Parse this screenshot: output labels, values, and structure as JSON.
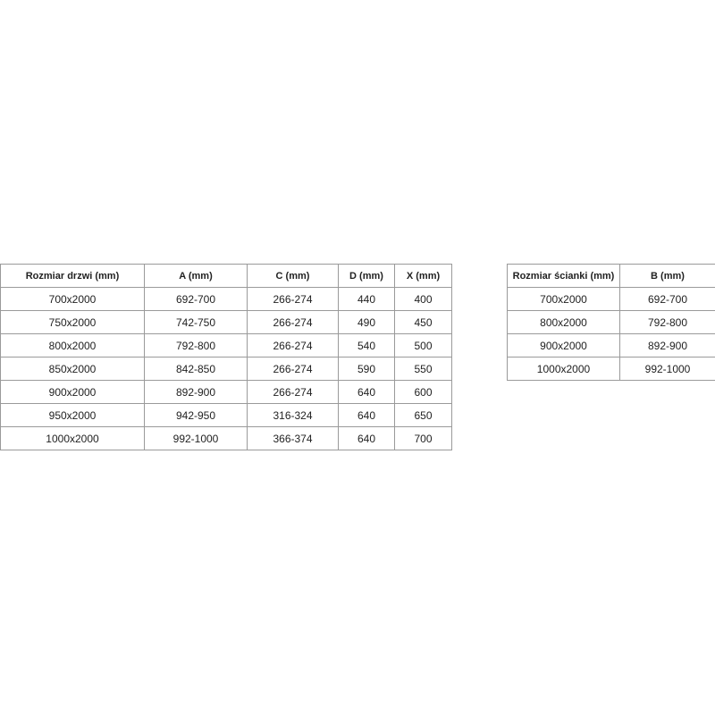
{
  "door_table": {
    "headers": [
      "Rozmiar drzwi (mm)",
      "A (mm)",
      "C (mm)",
      "D (mm)",
      "X (mm)"
    ],
    "rows": [
      [
        "700x2000",
        "692-700",
        "266-274",
        "440",
        "400"
      ],
      [
        "750x2000",
        "742-750",
        "266-274",
        "490",
        "450"
      ],
      [
        "800x2000",
        "792-800",
        "266-274",
        "540",
        "500"
      ],
      [
        "850x2000",
        "842-850",
        "266-274",
        "590",
        "550"
      ],
      [
        "900x2000",
        "892-900",
        "266-274",
        "640",
        "600"
      ],
      [
        "950x2000",
        "942-950",
        "316-324",
        "640",
        "650"
      ],
      [
        "1000x2000",
        "992-1000",
        "366-374",
        "640",
        "700"
      ]
    ]
  },
  "wall_table": {
    "headers": [
      "Rozmiar ścianki (mm)",
      "B (mm)"
    ],
    "rows": [
      [
        "700x2000",
        "692-700"
      ],
      [
        "800x2000",
        "792-800"
      ],
      [
        "900x2000",
        "892-900"
      ],
      [
        "1000x2000",
        "992-1000"
      ]
    ]
  }
}
